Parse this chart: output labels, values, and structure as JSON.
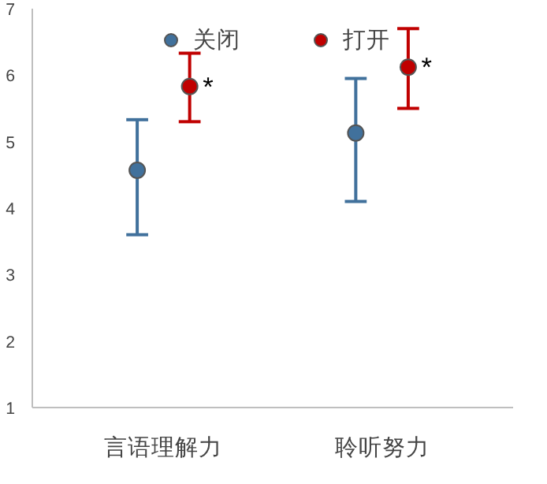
{
  "chart_data": {
    "type": "scatter",
    "categories": [
      "言语理解力",
      "聆听努力"
    ],
    "series": [
      {
        "name": "关闭",
        "color": "#41719c",
        "values": [
          4.57,
          5.13
        ],
        "errors": [
          [
            3.6,
            5.33
          ],
          [
            4.1,
            5.95
          ]
        ]
      },
      {
        "name": "打开",
        "color": "#c00000",
        "values": [
          5.83,
          6.12
        ],
        "errors": [
          [
            5.3,
            6.33
          ],
          [
            5.5,
            6.7
          ]
        ]
      }
    ],
    "ylim": [
      1,
      7
    ],
    "yticks": [
      1,
      2,
      3,
      4,
      5,
      6,
      7
    ],
    "grid": false,
    "legend": "top",
    "marker": "circle",
    "annotations": [
      "*",
      "*"
    ]
  }
}
